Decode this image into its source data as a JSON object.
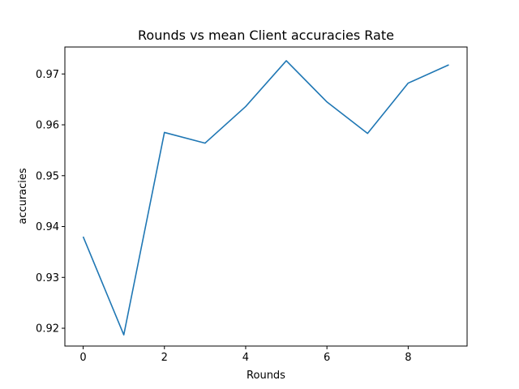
{
  "chart_data": {
    "type": "line",
    "title": "Rounds vs mean Client accuracies Rate",
    "xlabel": "Rounds",
    "ylabel": "accuracies",
    "x": [
      0,
      1,
      2,
      3,
      4,
      5,
      6,
      7,
      8,
      9
    ],
    "series": [
      {
        "values": [
          0.938,
          0.9187,
          0.9585,
          0.9564,
          0.9636,
          0.9726,
          0.9645,
          0.9583,
          0.9682,
          0.9718
        ],
        "color": "#1f77b4"
      }
    ],
    "xlim": [
      -0.45,
      9.45
    ],
    "ylim": [
      0.9165,
      0.9753
    ],
    "xticks": [
      0,
      2,
      4,
      6,
      8
    ],
    "xtick_labels": [
      "0",
      "2",
      "4",
      "6",
      "8"
    ],
    "yticks": [
      0.92,
      0.93,
      0.94,
      0.95,
      0.96,
      0.97
    ],
    "ytick_labels": [
      "0.92",
      "0.93",
      "0.94",
      "0.95",
      "0.96",
      "0.97"
    ],
    "grid": false,
    "legend": "none"
  }
}
